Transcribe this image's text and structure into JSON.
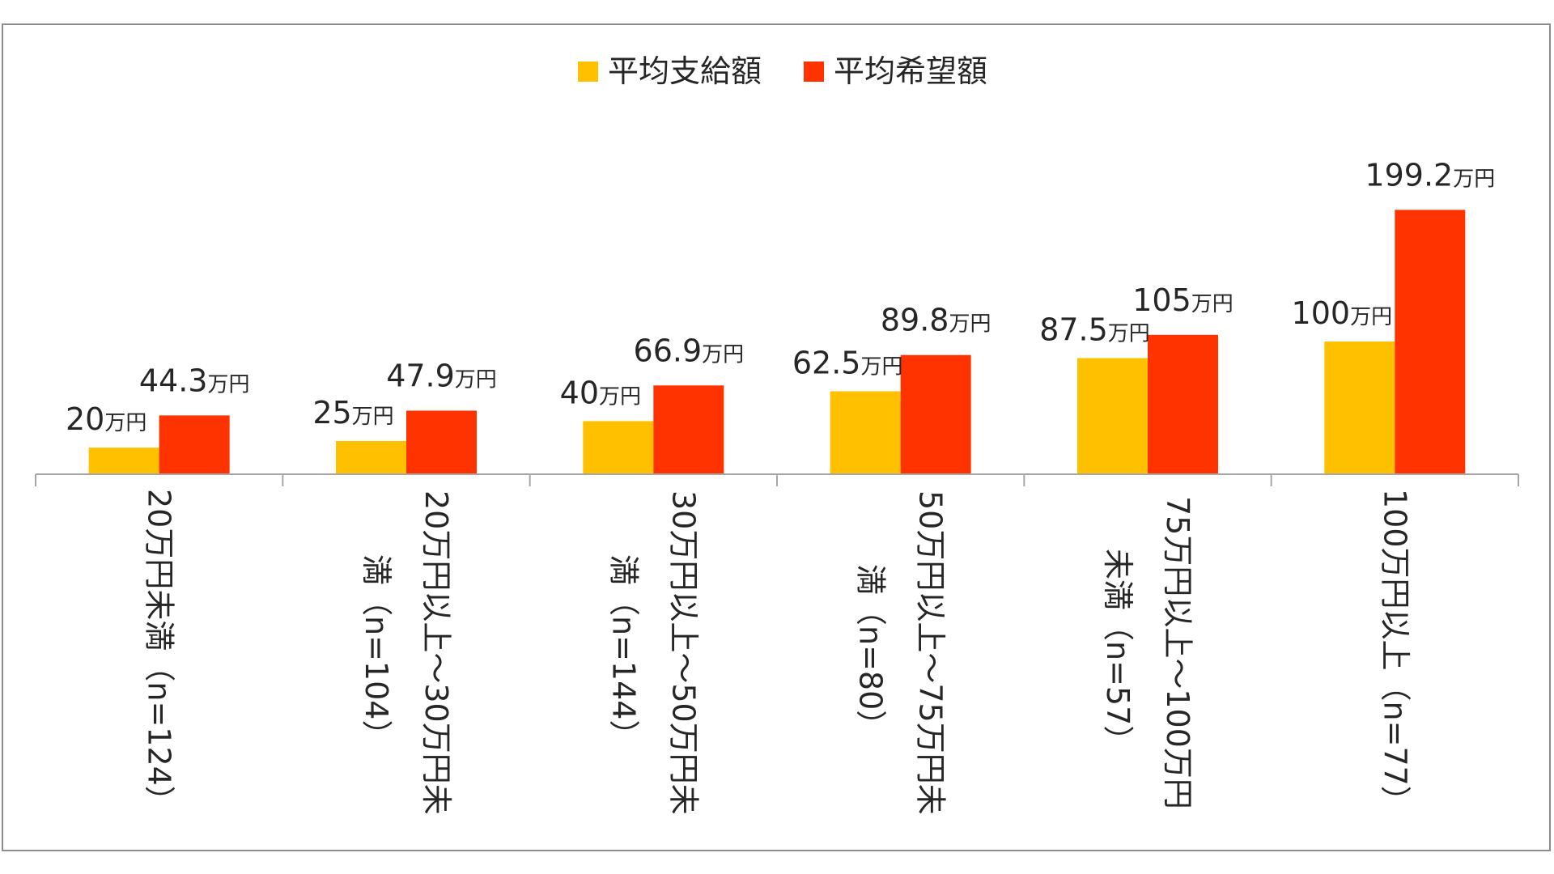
{
  "chart_data": {
    "type": "bar",
    "categories": [
      "20万円未満（n=124）",
      "20万円以上～30万円未満（n=104）",
      "30万円以上～50万円未満（n=144）",
      "50万円以上～75万円未満（n=80）",
      "75万円以上～100万円未満（n=57）",
      "100万円以上（n=77）"
    ],
    "series": [
      {
        "name": "平均支給額",
        "color": "#FFC000",
        "values": [
          20,
          25,
          40,
          62.5,
          87.5,
          100
        ]
      },
      {
        "name": "平均希望額",
        "color": "#FF3300",
        "values": [
          44.3,
          47.9,
          66.9,
          89.8,
          105,
          199.2
        ]
      }
    ],
    "value_unit": "万円",
    "ylim": [
      0,
      250
    ],
    "grid": false,
    "legend": "top",
    "data_labels": true
  }
}
